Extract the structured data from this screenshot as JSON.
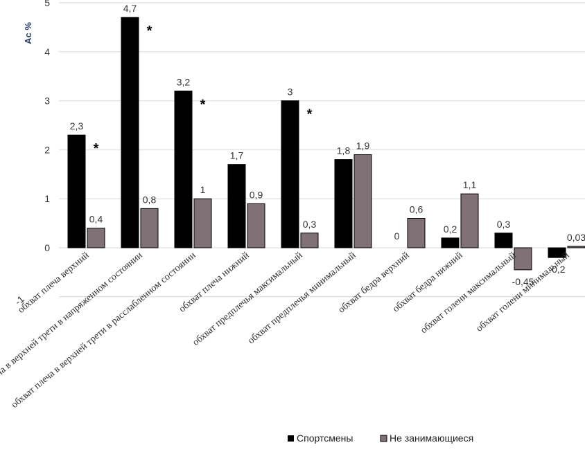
{
  "chart_data": {
    "type": "bar",
    "title": "",
    "xlabel": "",
    "ylabel": "Ac %",
    "ylim": [
      -1,
      5
    ],
    "yticks": [
      0,
      1,
      2,
      3,
      4,
      5
    ],
    "ytick_labels": [
      "0",
      "1",
      "2",
      "3",
      "4",
      "5"
    ],
    "lowest_tick_label": "-1",
    "grid": true,
    "legend_position": "bottom",
    "colors": {
      "athletes": "#000000",
      "non_athletes": "#7f7175",
      "grid": "#d9d9d9",
      "axis_title": "#2c3e66"
    },
    "categories": [
      "обхват плеча верхний",
      "обхват плеча в верхней трети в напряженном состоянии",
      "обхват плеча в верхней трети в расслабленном  состоянии",
      "обхват плеча нижний",
      "обхват предплечья максимальный",
      "обхват предплечья минимальный",
      "обхват бедра верхний",
      "обхват бедра нижний",
      "обхват голени максимальный",
      "обхват голени минимальный"
    ],
    "series": [
      {
        "name": "Спортсмены",
        "values": [
          2.3,
          4.7,
          3.2,
          1.7,
          3,
          1.8,
          0,
          0.2,
          0.3,
          -0.2
        ],
        "labels": [
          "2,3",
          "4,7",
          "3,2",
          "1,7",
          "3",
          "1,8",
          "0",
          "0,2",
          "0,3",
          "-0,2"
        ]
      },
      {
        "name": "Не занимающиеся",
        "values": [
          0.4,
          0.8,
          1,
          0.9,
          0.3,
          1.9,
          0.6,
          1.1,
          -0.45,
          0.03
        ],
        "labels": [
          "0,4",
          "0,8",
          "1",
          "0,9",
          "0,3",
          "1,9",
          "0,6",
          "1,1",
          "-0,45",
          "0,03"
        ]
      }
    ],
    "significance_markers": [
      {
        "category_index": 0,
        "symbol": "*"
      },
      {
        "category_index": 1,
        "symbol": "*"
      },
      {
        "category_index": 2,
        "symbol": "*"
      },
      {
        "category_index": 4,
        "symbol": "*"
      }
    ]
  }
}
